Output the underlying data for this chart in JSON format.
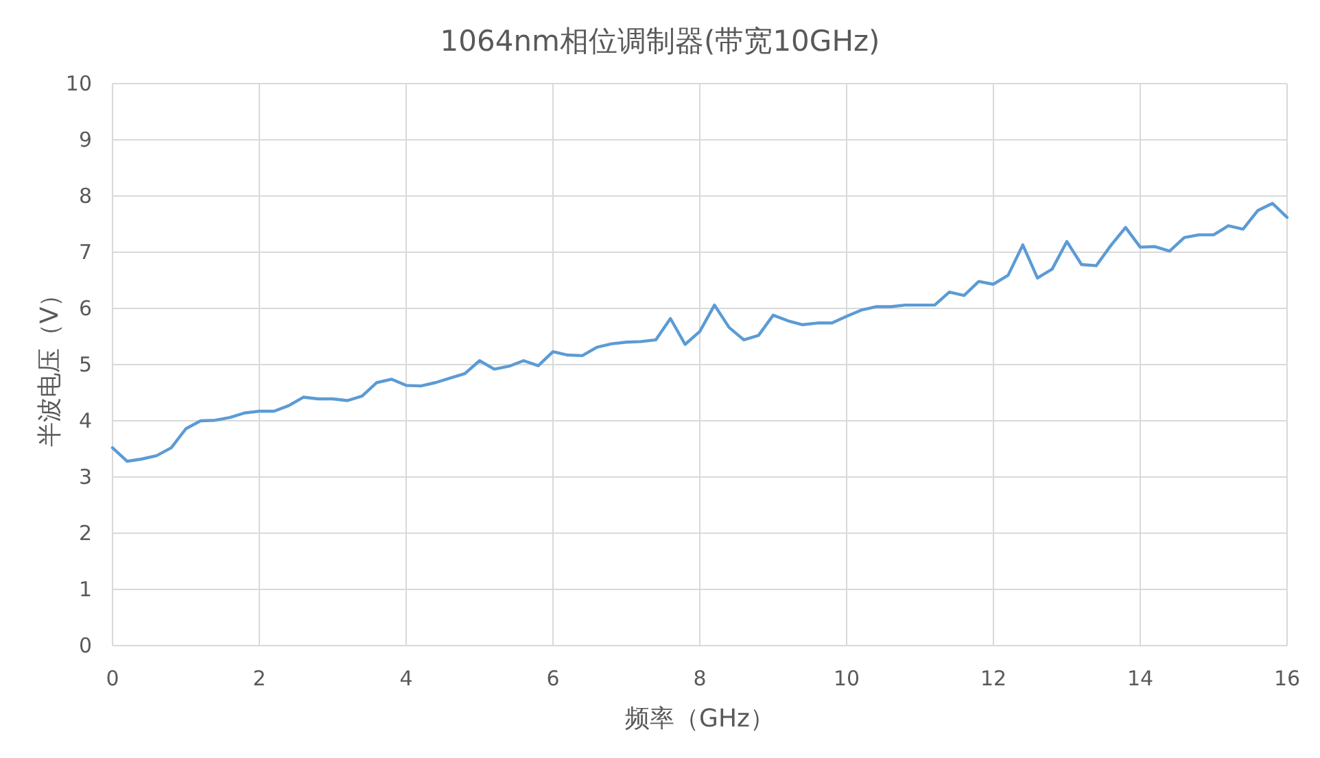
{
  "chart_data": {
    "type": "line",
    "title": "1064nm相位调制器(带宽10GHz)",
    "xlabel": "频率（GHz）",
    "ylabel": "半波电压（V）",
    "x": [
      0,
      0.2,
      0.4,
      0.6,
      0.8,
      1.0,
      1.2,
      1.4,
      1.6,
      1.8,
      2.0,
      2.2,
      2.4,
      2.6,
      2.8,
      3.0,
      3.2,
      3.4,
      3.6,
      3.8,
      4.0,
      4.2,
      4.4,
      4.6,
      4.8,
      5.0,
      5.2,
      5.4,
      5.6,
      5.8,
      6.0,
      6.2,
      6.4,
      6.6,
      6.8,
      7.0,
      7.2,
      7.4,
      7.6,
      7.8,
      8.0,
      8.2,
      8.4,
      8.6,
      8.8,
      9.0,
      9.2,
      9.4,
      9.6,
      9.8,
      10.0,
      10.2,
      10.4,
      10.6,
      10.8,
      11.0,
      11.2,
      11.4,
      11.6,
      11.8,
      12.0,
      12.2,
      12.4,
      12.6,
      12.8,
      13.0,
      13.2,
      13.4,
      13.6,
      13.8,
      14.0,
      14.2,
      14.4,
      14.6,
      14.8,
      15.0,
      15.2,
      15.4,
      15.6,
      15.8,
      16.0
    ],
    "series": [
      {
        "color": "#5b9bd5",
        "values": [
          3.52,
          3.28,
          3.32,
          3.38,
          3.52,
          3.86,
          4.0,
          4.01,
          4.06,
          4.14,
          4.17,
          4.17,
          4.27,
          4.42,
          4.39,
          4.39,
          4.36,
          4.44,
          4.68,
          4.74,
          4.63,
          4.62,
          4.68,
          4.76,
          4.84,
          5.07,
          4.92,
          4.97,
          5.07,
          4.98,
          5.23,
          5.17,
          5.16,
          5.31,
          5.37,
          5.4,
          5.41,
          5.44,
          5.82,
          5.36,
          5.59,
          6.06,
          5.66,
          5.44,
          5.52,
          5.88,
          5.78,
          5.71,
          5.74,
          5.74,
          5.86,
          5.97,
          6.03,
          6.03,
          6.06,
          6.06,
          6.06,
          6.29,
          6.23,
          6.48,
          6.43,
          6.59,
          7.13,
          6.54,
          6.7,
          7.19,
          6.78,
          6.76,
          7.12,
          7.44,
          7.09,
          7.1,
          7.02,
          7.26,
          7.31,
          7.31,
          7.47,
          7.41,
          7.74,
          7.87,
          7.62
        ]
      }
    ],
    "xlim": [
      0,
      16
    ],
    "xticks": [
      0,
      2,
      4,
      6,
      8,
      10,
      12,
      14,
      16
    ],
    "ylim": [
      0,
      10
    ],
    "yticks": [
      0,
      1,
      2,
      3,
      4,
      5,
      6,
      7,
      8,
      9,
      10
    ],
    "grid": true,
    "marker": "none",
    "line_style": "solid"
  }
}
